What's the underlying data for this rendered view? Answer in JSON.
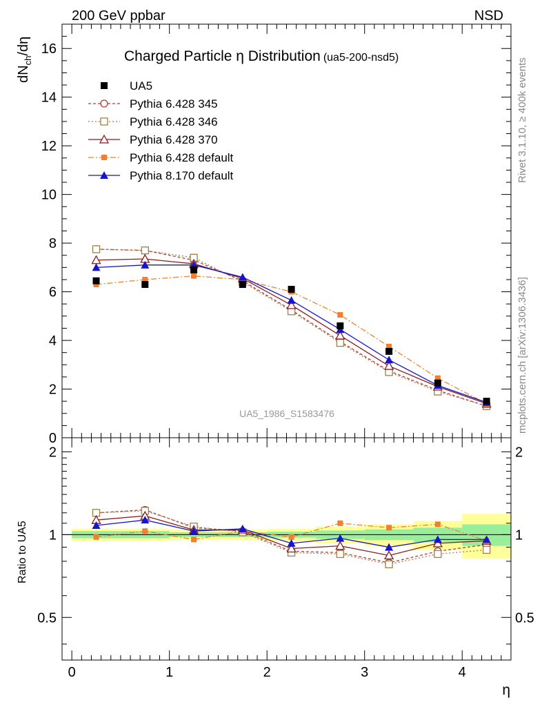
{
  "header": {
    "left": "200 GeV ppbar",
    "right": "NSD"
  },
  "side_labels": {
    "rivet": "Rivet 3.1.10, ≥ 400k events",
    "site": "mcplots.cern.ch [arXiv:1306.3436]"
  },
  "chart_data": [
    {
      "type": "line",
      "title": "Charged Particle η Distribution",
      "subtitle": "(ua5-200-nsd5)",
      "watermark": "UA5_1986_S1583476",
      "ylabel": "dN_ch/dη",
      "xlim": [
        -0.1,
        4.5
      ],
      "ylim": [
        0,
        17
      ],
      "yticks": [
        0,
        2,
        4,
        6,
        8,
        10,
        12,
        14,
        16
      ],
      "x": [
        0.25,
        0.75,
        1.25,
        1.75,
        2.25,
        2.75,
        3.25,
        3.75,
        4.25
      ],
      "data": {
        "name": "UA5",
        "values": [
          6.45,
          6.3,
          6.9,
          6.3,
          6.1,
          4.6,
          3.55,
          2.25,
          1.5
        ]
      },
      "series": [
        {
          "name": "Pythia 6.428 345",
          "color": "#b03a3a",
          "values": [
            7.75,
            7.7,
            7.3,
            6.45,
            5.25,
            3.95,
            2.75,
            1.95,
            1.3
          ]
        },
        {
          "name": "Pythia 6.428 346",
          "color": "#a08040",
          "values": [
            7.75,
            7.7,
            7.4,
            6.4,
            5.2,
            3.9,
            2.7,
            1.9,
            1.3
          ]
        },
        {
          "name": "Pythia 6.428 370",
          "color": "#8b1a1a",
          "values": [
            7.3,
            7.35,
            7.15,
            6.55,
            5.45,
            4.2,
            2.95,
            2.1,
            1.4
          ]
        },
        {
          "name": "Pythia 6.428 default",
          "color": "#f08030",
          "values": [
            6.3,
            6.5,
            6.65,
            6.5,
            6.0,
            5.05,
            3.75,
            2.45,
            1.4
          ]
        },
        {
          "name": "Pythia 8.170 default",
          "color": "#1515d0",
          "values": [
            7.0,
            7.1,
            7.1,
            6.6,
            5.65,
            4.45,
            3.2,
            2.15,
            1.45
          ]
        }
      ]
    },
    {
      "type": "line",
      "ylabel": "Ratio to UA5",
      "xlabel": "η",
      "xlim": [
        -0.1,
        4.5
      ],
      "ylim": [
        0.35,
        2.25
      ],
      "yticks": [
        0.5,
        1,
        2
      ],
      "ytick_labels": [
        "0.5",
        "1",
        "2"
      ],
      "xticks": [
        0,
        1,
        2,
        3,
        4
      ],
      "xtick_labels": [
        "0",
        "1",
        "2",
        "3",
        "4"
      ],
      "x": [
        0.25,
        0.75,
        1.25,
        1.75,
        2.25,
        2.75,
        3.25,
        3.75,
        4.25
      ],
      "bins": [
        [
          0,
          0.5
        ],
        [
          0.5,
          1
        ],
        [
          1,
          1.5
        ],
        [
          1.5,
          2
        ],
        [
          2,
          2.5
        ],
        [
          2.5,
          3
        ],
        [
          3,
          3.5
        ],
        [
          3.5,
          4
        ],
        [
          4,
          4.5
        ]
      ],
      "band_stat": [
        [
          0.97,
          1.03
        ],
        [
          0.97,
          1.03
        ],
        [
          0.98,
          1.02
        ],
        [
          0.98,
          1.02
        ],
        [
          0.975,
          1.025
        ],
        [
          0.965,
          1.035
        ],
        [
          0.955,
          1.045
        ],
        [
          0.94,
          1.06
        ],
        [
          0.91,
          1.09
        ]
      ],
      "band_total": [
        [
          0.95,
          1.05
        ],
        [
          0.95,
          1.05
        ],
        [
          0.955,
          1.045
        ],
        [
          0.955,
          1.045
        ],
        [
          0.95,
          1.05
        ],
        [
          0.93,
          1.07
        ],
        [
          0.91,
          1.09
        ],
        [
          0.88,
          1.12
        ],
        [
          0.82,
          1.19
        ]
      ],
      "series": [
        {
          "name": "Pythia 6.428 345",
          "color": "#b03a3a",
          "values": [
            1.2,
            1.23,
            1.06,
            1.03,
            0.87,
            0.86,
            0.79,
            0.87,
            0.92
          ]
        },
        {
          "name": "Pythia 6.428 346",
          "color": "#a08040",
          "values": [
            1.2,
            1.22,
            1.07,
            1.02,
            0.86,
            0.85,
            0.78,
            0.85,
            0.88
          ]
        },
        {
          "name": "Pythia 6.428 370",
          "color": "#8b1a1a",
          "values": [
            1.13,
            1.17,
            1.04,
            1.04,
            0.89,
            0.91,
            0.84,
            0.93,
            0.95
          ]
        },
        {
          "name": "Pythia 6.428 default",
          "color": "#f08030",
          "values": [
            0.98,
            1.03,
            0.96,
            1.03,
            0.98,
            1.1,
            1.06,
            1.09,
            0.95
          ]
        },
        {
          "name": "Pythia 8.170 default",
          "color": "#1515d0",
          "values": [
            1.08,
            1.13,
            1.03,
            1.05,
            0.93,
            0.97,
            0.9,
            0.96,
            0.96
          ]
        }
      ]
    }
  ]
}
